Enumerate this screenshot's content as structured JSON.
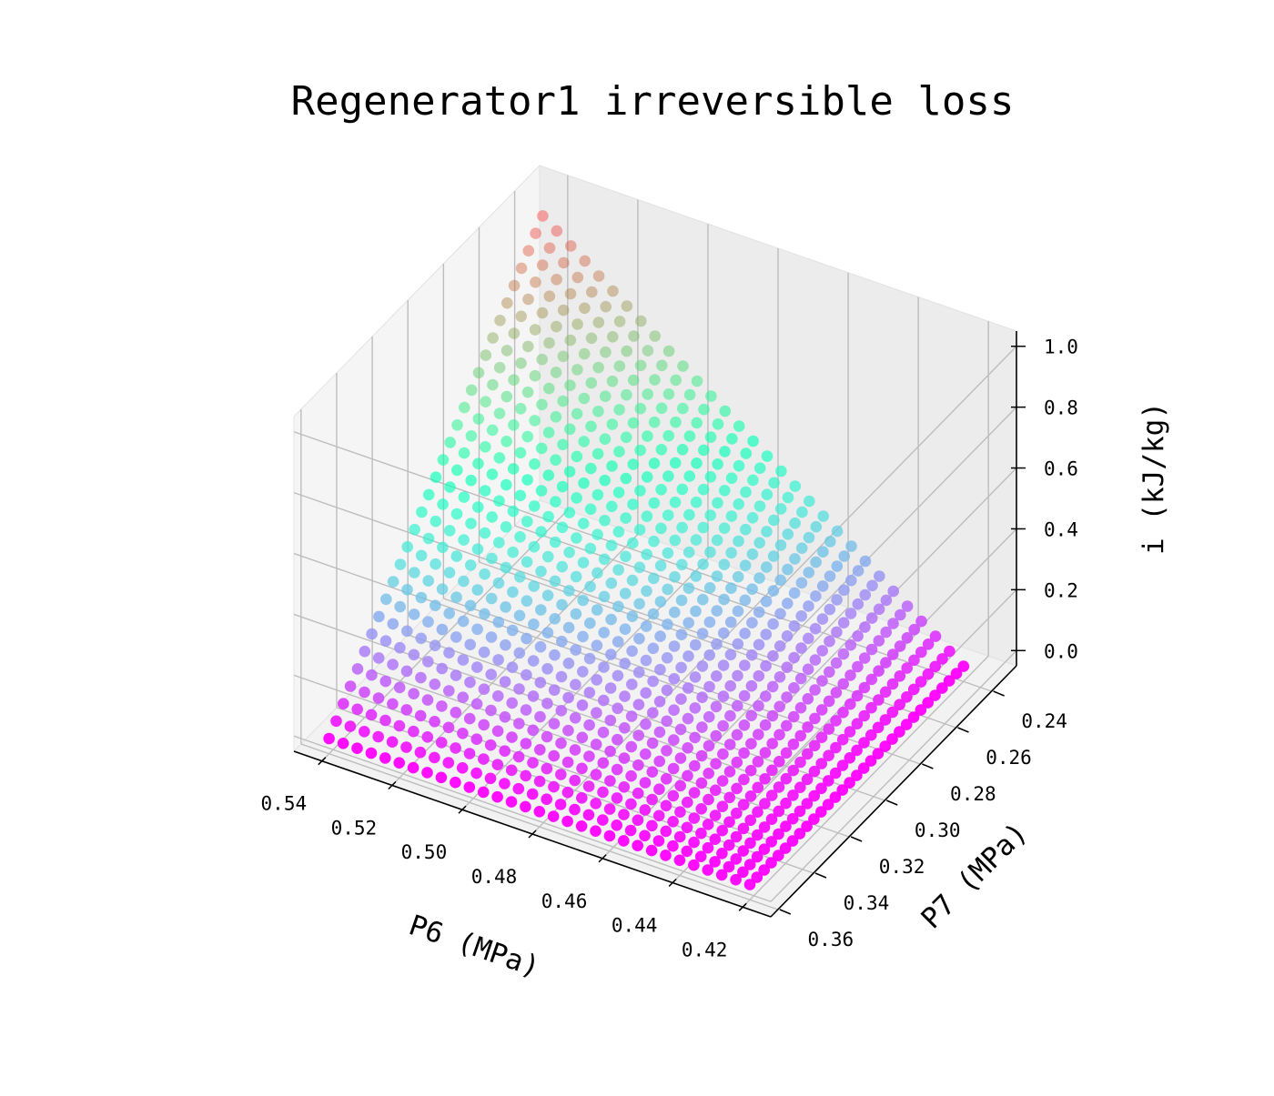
{
  "chart_data": {
    "type": "scatter",
    "title": "Regenerator1 irreversible loss",
    "xlabel": "P6 (MPa)",
    "ylabel": "P7 (MPa)",
    "zlabel": "i (kJ/kg)",
    "x_ticks": [
      "0.54",
      "0.52",
      "0.50",
      "0.48",
      "0.46",
      "0.44",
      "0.42"
    ],
    "y_ticks": [
      "0.24",
      "0.26",
      "0.28",
      "0.30",
      "0.32",
      "0.34",
      "0.36"
    ],
    "z_ticks": [
      "0.0",
      "0.2",
      "0.4",
      "0.6",
      "0.8",
      "1.0"
    ],
    "xlim": [
      0.412,
      0.548
    ],
    "ylim": [
      0.226,
      0.364
    ],
    "zlim": [
      -0.05,
      1.05
    ],
    "grid": true,
    "colormap": "rainbow",
    "surface": {
      "p6_range": [
        0.42,
        0.54
      ],
      "p7_range": [
        0.24,
        0.36
      ],
      "i_range": [
        0.0,
        1.0
      ],
      "point_grid": [
        31,
        31
      ],
      "description": "i increases as P6 increases and as P7 decreases; i = 0 at P6 = 0.42, P7 = 0.36; i = 1.0 at P6 = 0.54, P7 = 0.24"
    }
  }
}
